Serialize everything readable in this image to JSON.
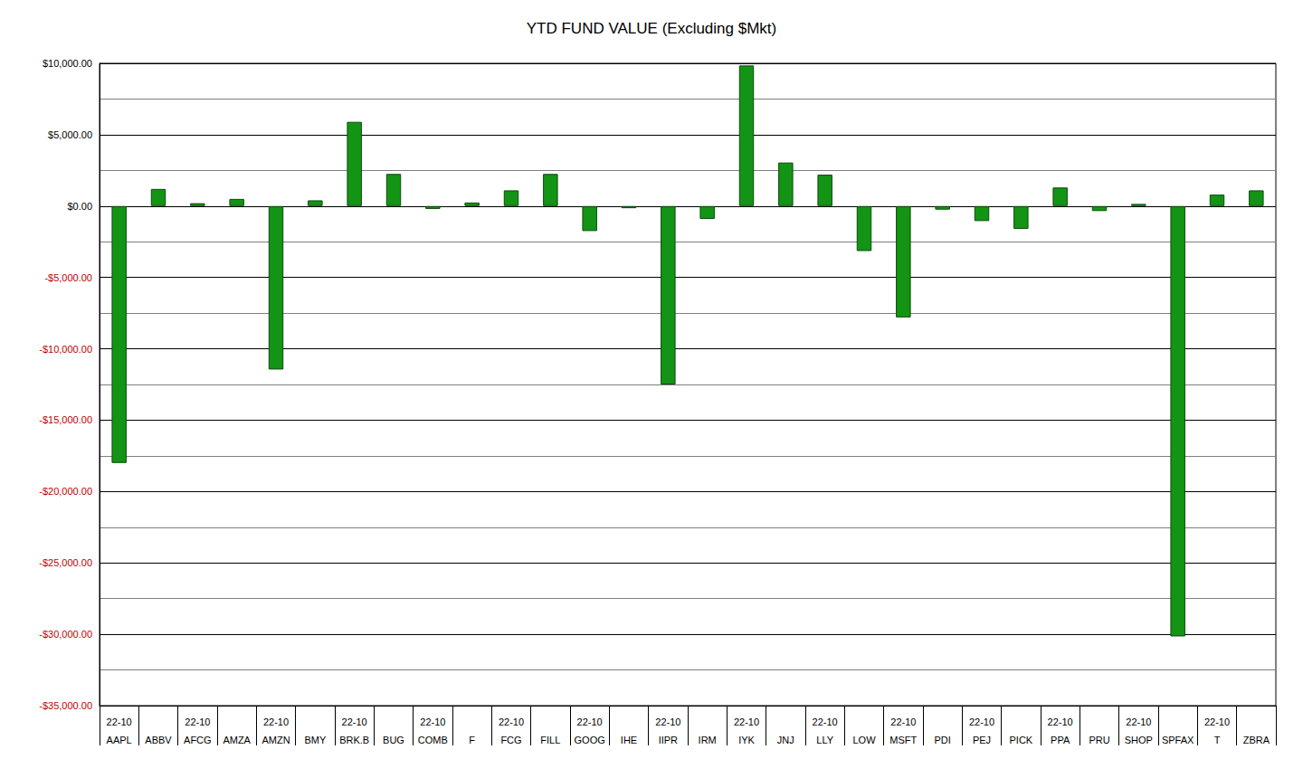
{
  "chart_data": {
    "type": "bar",
    "title": "YTD FUND VALUE (Excluding $Mkt)",
    "categories": [
      "AAPL",
      "ABBV",
      "AFCG",
      "AMZA",
      "AMZN",
      "BMY",
      "BRK.B",
      "BUG",
      "COMB",
      "F",
      "FCG",
      "FILL",
      "GOOG",
      "IHE",
      "IIPR",
      "IRM",
      "IYK",
      "JNJ",
      "LLY",
      "LOW",
      "MSFT",
      "PDI",
      "PEJ",
      "PICK",
      "PPA",
      "PRU",
      "SHOP",
      "SPFAX",
      "T",
      "ZBRA"
    ],
    "category_period": [
      "22-10",
      null,
      "22-10",
      null,
      "22-10",
      null,
      "22-10",
      null,
      "22-10",
      null,
      "22-10",
      null,
      "22-10",
      null,
      "22-10",
      null,
      "22-10",
      null,
      "22-10",
      null,
      "22-10",
      null,
      "22-10",
      null,
      "22-10",
      null,
      "22-10",
      null,
      "22-10",
      null
    ],
    "values": [
      -18000,
      1200,
      200,
      500,
      -11450,
      400,
      5900,
      2250,
      -200,
      250,
      1100,
      2250,
      -1750,
      -150,
      -12500,
      -900,
      9850,
      3050,
      2200,
      -3150,
      -7800,
      -250,
      -1050,
      -1600,
      1300,
      -350,
      150,
      -30150,
      800,
      1100
    ],
    "color": "#149414",
    "ylim": [
      -35000,
      10000
    ],
    "yticks": [
      {
        "value": -35000,
        "label": "-$35,000.00"
      },
      {
        "value": -30000,
        "label": "-$30,000.00"
      },
      {
        "value": -25000,
        "label": "-$25,000.00"
      },
      {
        "value": -20000,
        "label": "-$20,000.00"
      },
      {
        "value": -15000,
        "label": "-$15,000.00"
      },
      {
        "value": -10000,
        "label": "-$10,000.00"
      },
      {
        "value": -5000,
        "label": "-$5,000.00"
      },
      {
        "value": 0,
        "label": "$0.00"
      },
      {
        "value": 5000,
        "label": "$5,000.00"
      },
      {
        "value": 10000,
        "label": "$10,000.00"
      }
    ],
    "grid": true
  }
}
